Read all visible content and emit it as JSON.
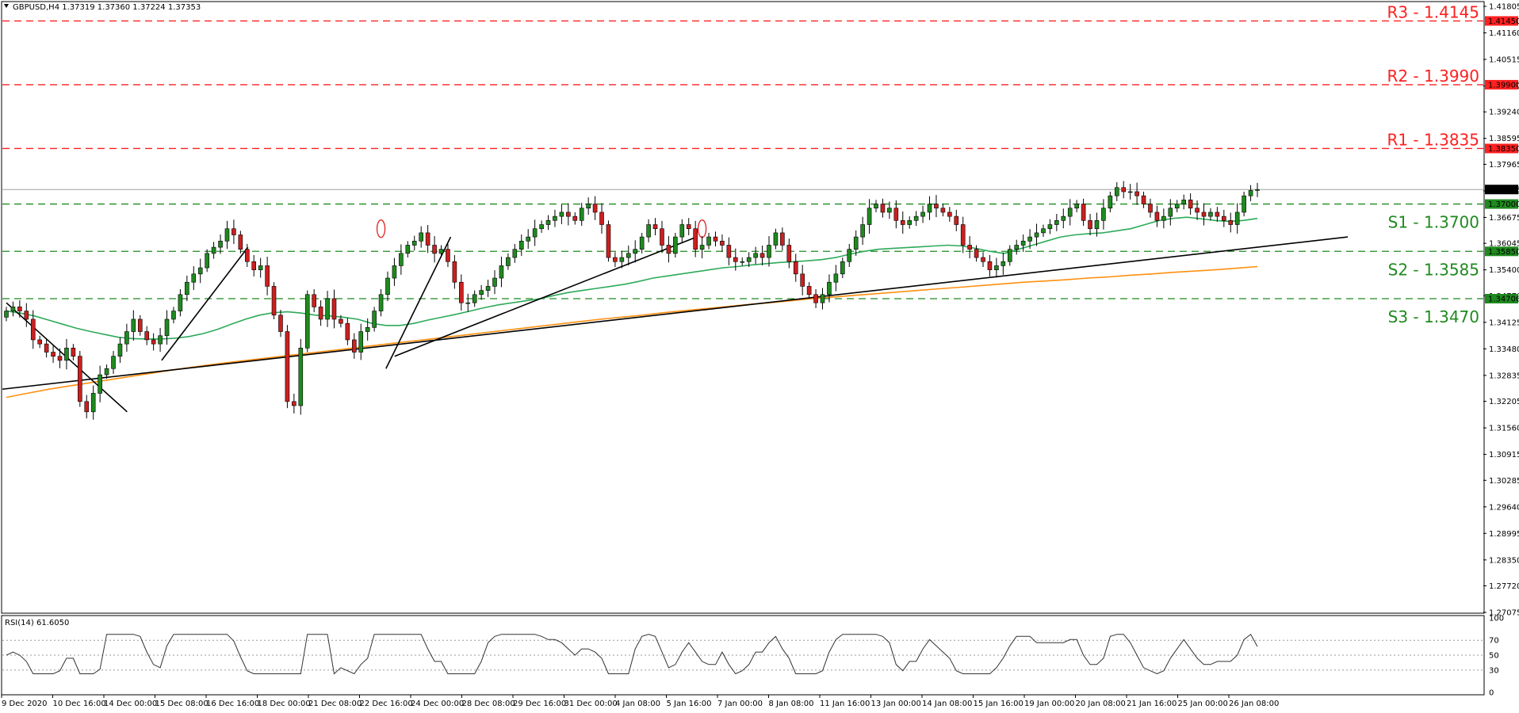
{
  "header": {
    "symbol_line": "GBPUSD,H4  1.37319 1.37360 1.37224 1.37353"
  },
  "rsi_header": {
    "label": "RSI(14) 61.6050"
  },
  "chart_data": {
    "type": "candlestick",
    "title": "GBPUSD,H4",
    "ohlc_last": {
      "open": 1.37319,
      "high": 1.3736,
      "low": 1.37224,
      "close": 1.37353
    },
    "ylim": [
      1.27075,
      1.41805
    ],
    "y_ticks": [
      "1.41805",
      "1.41160",
      "1.40515",
      "1.39870",
      "1.39240",
      "1.38595",
      "1.37965",
      "1.37320",
      "1.36675",
      "1.36045",
      "1.35400",
      "1.34770",
      "1.34125",
      "1.33480",
      "1.32835",
      "1.32205",
      "1.31560",
      "1.30915",
      "1.30285",
      "1.29640",
      "1.28995",
      "1.28350",
      "1.27720",
      "1.27075"
    ],
    "price_tags": [
      {
        "value": 1.4145,
        "text": "1.41450",
        "color": "#ff2020"
      },
      {
        "value": 1.399,
        "text": "1.39900",
        "color": "#ff2020"
      },
      {
        "value": 1.3835,
        "text": "1.38350",
        "color": "#ff2020"
      },
      {
        "value": 1.37353,
        "text": "1.37353",
        "color": "#000000"
      },
      {
        "value": 1.37,
        "text": "1.37000",
        "color": "#1f8a1f"
      },
      {
        "value": 1.3585,
        "text": "1.35850",
        "color": "#1f8a1f"
      },
      {
        "value": 1.347,
        "text": "1.34700",
        "color": "#1f8a1f"
      }
    ],
    "levels": [
      {
        "name": "R3",
        "label": "R3 - 1.4145",
        "value": 1.4145,
        "color": "#ff2020"
      },
      {
        "name": "R2",
        "label": "R2 - 1.3990",
        "value": 1.399,
        "color": "#ff2020"
      },
      {
        "name": "R1",
        "label": "R1 - 1.3835",
        "value": 1.3835,
        "color": "#ff2020"
      },
      {
        "name": "S1",
        "label": "S1 - 1.3700",
        "value": 1.37,
        "color": "#1f8a1f"
      },
      {
        "name": "S2",
        "label": "S2 - 1.3585",
        "value": 1.3585,
        "color": "#1f8a1f"
      },
      {
        "name": "S3",
        "label": "S3 - 1.3470",
        "value": 1.347,
        "color": "#1f8a1f"
      }
    ],
    "x_labels": [
      "9 Dec 2020",
      "10 Dec 16:00",
      "14 Dec 00:00",
      "15 Dec 08:00",
      "16 Dec 16:00",
      "18 Dec 00:00",
      "21 Dec 08:00",
      "22 Dec 16:00",
      "24 Dec 00:00",
      "28 Dec 08:00",
      "29 Dec 16:00",
      "31 Dec 00:00",
      "4 Jan 08:00",
      "5 Jan 16:00",
      "7 Jan 00:00",
      "8 Jan 08:00",
      "11 Jan 16:00",
      "13 Jan 00:00",
      "14 Jan 08:00",
      "15 Jan 16:00",
      "19 Jan 00:00",
      "20 Jan 08:00",
      "21 Jan 16:00",
      "25 Jan 00:00",
      "26 Jan 08:00"
    ],
    "closes": [
      1.344,
      1.345,
      1.344,
      1.342,
      1.337,
      1.336,
      1.334,
      1.333,
      1.332,
      1.335,
      1.333,
      1.322,
      1.3195,
      1.324,
      1.3285,
      1.33,
      1.333,
      1.336,
      1.339,
      1.342,
      1.339,
      1.337,
      1.336,
      1.338,
      1.342,
      1.344,
      1.348,
      1.351,
      1.353,
      1.3545,
      1.358,
      1.3595,
      1.361,
      1.364,
      1.3625,
      1.359,
      1.356,
      1.354,
      1.355,
      1.35,
      1.343,
      1.339,
      1.322,
      1.321,
      1.335,
      1.348,
      1.345,
      1.342,
      1.347,
      1.342,
      1.341,
      1.337,
      1.334,
      1.339,
      1.34,
      1.344,
      1.348,
      1.352,
      1.355,
      1.358,
      1.36,
      1.361,
      1.363,
      1.36,
      1.358,
      1.359,
      1.356,
      1.351,
      1.346,
      1.346,
      1.348,
      1.349,
      1.35,
      1.352,
      1.355,
      1.357,
      1.359,
      1.361,
      1.362,
      1.364,
      1.365,
      1.366,
      1.367,
      1.368,
      1.367,
      1.366,
      1.369,
      1.37,
      1.368,
      1.365,
      1.357,
      1.356,
      1.357,
      1.358,
      1.359,
      1.362,
      1.365,
      1.364,
      1.36,
      1.358,
      1.362,
      1.365,
      1.364,
      1.359,
      1.36,
      1.362,
      1.361,
      1.36,
      1.357,
      1.356,
      1.356,
      1.357,
      1.358,
      1.357,
      1.36,
      1.363,
      1.36,
      1.356,
      1.353,
      1.35,
      1.348,
      1.346,
      1.348,
      1.351,
      1.353,
      1.356,
      1.359,
      1.362,
      1.365,
      1.369,
      1.37,
      1.368,
      1.369,
      1.366,
      1.365,
      1.366,
      1.367,
      1.368,
      1.37,
      1.369,
      1.368,
      1.367,
      1.365,
      1.36,
      1.359,
      1.357,
      1.356,
      1.354,
      1.355,
      1.356,
      1.359,
      1.36,
      1.361,
      1.362,
      1.363,
      1.364,
      1.365,
      1.366,
      1.367,
      1.369,
      1.37,
      1.366,
      1.364,
      1.366,
      1.369,
      1.372,
      1.374,
      1.373,
      1.373,
      1.372,
      1.37,
      1.368,
      1.366,
      1.367,
      1.369,
      1.37,
      1.371,
      1.369,
      1.368,
      1.367,
      1.368,
      1.367,
      1.366,
      1.365,
      1.368,
      1.372,
      1.3733,
      1.37353
    ],
    "ema_fast": [
      1.344,
      1.3435,
      1.3428,
      1.3418,
      1.3408,
      1.3398,
      1.339,
      1.3383,
      1.3376,
      1.3373,
      1.3372,
      1.3372,
      1.3374,
      1.3378,
      1.3385,
      1.3395,
      1.3408,
      1.342,
      1.343,
      1.3436,
      1.3438,
      1.3435,
      1.343,
      1.3428,
      1.3425,
      1.342,
      1.341,
      1.3405,
      1.3405,
      1.341,
      1.3418,
      1.3425,
      1.3432,
      1.344,
      1.3448,
      1.3455,
      1.346,
      1.3465,
      1.347,
      1.3478,
      1.3485,
      1.349,
      1.3495,
      1.35,
      1.3505,
      1.3512,
      1.352,
      1.3525,
      1.353,
      1.3535,
      1.354,
      1.3545,
      1.3548,
      1.3552,
      1.3555,
      1.3558,
      1.356,
      1.3562,
      1.3565,
      1.357,
      1.3578,
      1.3585,
      1.359,
      1.3592,
      1.3594,
      1.3596,
      1.3598,
      1.36,
      1.3598,
      1.3592,
      1.3585,
      1.358,
      1.359,
      1.36,
      1.361,
      1.362,
      1.3625,
      1.3628,
      1.363,
      1.3635,
      1.364,
      1.365,
      1.366,
      1.3665,
      1.3668,
      1.3664,
      1.366,
      1.3658,
      1.366,
      1.3665
    ],
    "ema_slow": [
      1.323,
      1.324,
      1.325,
      1.3258,
      1.3266,
      1.3274,
      1.3282,
      1.329,
      1.3298,
      1.3305,
      1.3312,
      1.3318,
      1.3324,
      1.333,
      1.3336,
      1.3342,
      1.3348,
      1.3354,
      1.336,
      1.3366,
      1.3372,
      1.3378,
      1.3384,
      1.339,
      1.3396,
      1.3402,
      1.3408,
      1.3414,
      1.342,
      1.3425,
      1.343,
      1.3436,
      1.3441,
      1.3446,
      1.3451,
      1.3456,
      1.346,
      1.3465,
      1.347,
      1.3474,
      1.3478,
      1.3482,
      1.3486,
      1.349,
      1.3494,
      1.3498,
      1.3502,
      1.3506,
      1.351,
      1.3513,
      1.3516,
      1.352,
      1.3523,
      1.3527,
      1.353,
      1.3534,
      1.3537,
      1.354,
      1.3544,
      1.3548
    ],
    "rsi": {
      "period": 14,
      "value": 61.605,
      "levels": [
        70,
        50,
        30
      ],
      "ylim": [
        0,
        100
      ],
      "ticks": [
        "100",
        "70",
        "50",
        "30",
        "0"
      ]
    }
  },
  "colors": {
    "bull": "#1f8a1f",
    "bear": "#cc1f1f",
    "ema_fast": "#2eaa5a",
    "ema_slow": "#ff9010",
    "trendline": "#000000",
    "grid": "#c0c0c0"
  }
}
